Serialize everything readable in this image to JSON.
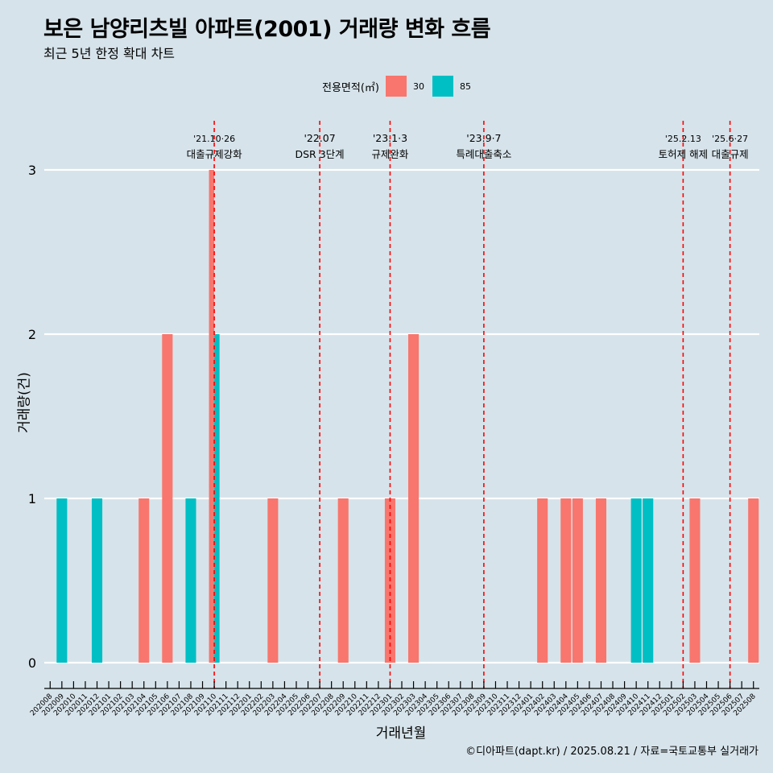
{
  "title": "보은 남양리츠빌 아파트(2001) 거래량 변화 흐름",
  "subtitle": "최근 5년 한정 확대 차트",
  "caption": "©디아파트(dapt.kr) / 2025.08.21 / 자료=국토교통부 실거래가",
  "legend": {
    "title": "전용면적(㎡)",
    "items": [
      {
        "label": "30",
        "color": "#F8766D"
      },
      {
        "label": "85",
        "color": "#00BFC4"
      }
    ]
  },
  "chart_data": {
    "type": "bar",
    "xlabel": "거래년월",
    "ylabel": "거래량(건)",
    "ylim": [
      0,
      3
    ],
    "y_ticks": [
      "0",
      "1",
      "2",
      "3"
    ],
    "grid": true,
    "legend_position": "top",
    "categories": [
      "202008",
      "202009",
      "202010",
      "202011",
      "202012",
      "202101",
      "202102",
      "202103",
      "202104",
      "202105",
      "202106",
      "202107",
      "202108",
      "202109",
      "202110",
      "202111",
      "202112",
      "202201",
      "202202",
      "202203",
      "202204",
      "202205",
      "202206",
      "202207",
      "202208",
      "202209",
      "202210",
      "202211",
      "202212",
      "202301",
      "202302",
      "202303",
      "202304",
      "202305",
      "202306",
      "202307",
      "202308",
      "202309",
      "202310",
      "202311",
      "202312",
      "202401",
      "202402",
      "202403",
      "202404",
      "202405",
      "202406",
      "202407",
      "202408",
      "202409",
      "202410",
      "202411",
      "202412",
      "202501",
      "202502",
      "202503",
      "202504",
      "202505",
      "202506",
      "202507",
      "202508"
    ],
    "series": [
      {
        "name": "30",
        "color": "#F8766D",
        "points": [
          {
            "x": "202104",
            "y": 1
          },
          {
            "x": "202106",
            "y": 2
          },
          {
            "x": "202110",
            "y": 3
          },
          {
            "x": "202203",
            "y": 1
          },
          {
            "x": "202209",
            "y": 1
          },
          {
            "x": "202301",
            "y": 1
          },
          {
            "x": "202303",
            "y": 2
          },
          {
            "x": "202402",
            "y": 1
          },
          {
            "x": "202404",
            "y": 1
          },
          {
            "x": "202405",
            "y": 1
          },
          {
            "x": "202407",
            "y": 1
          },
          {
            "x": "202503",
            "y": 1
          },
          {
            "x": "202508",
            "y": 1
          }
        ]
      },
      {
        "name": "85",
        "color": "#00BFC4",
        "points": [
          {
            "x": "202009",
            "y": 1
          },
          {
            "x": "202012",
            "y": 1
          },
          {
            "x": "202108",
            "y": 1
          },
          {
            "x": "202110",
            "y": 2
          },
          {
            "x": "202410",
            "y": 1
          },
          {
            "x": "202411",
            "y": 1
          }
        ]
      }
    ],
    "annotations": [
      {
        "x": "202110",
        "date": "'21.10·26",
        "label": "대출규제강화"
      },
      {
        "x": "202207",
        "date": "'22.07",
        "label": "DSR 3단계"
      },
      {
        "x": "202301",
        "date": "'23.1·3",
        "label": "규제완화"
      },
      {
        "x": "202309",
        "date": "'23.9·7",
        "label": "특례대출축소"
      },
      {
        "x": "202502",
        "date": "'25.2.13",
        "label": "토허제 해제"
      },
      {
        "x": "202506",
        "date": "'25.6·27",
        "label": "대출규제"
      }
    ]
  }
}
